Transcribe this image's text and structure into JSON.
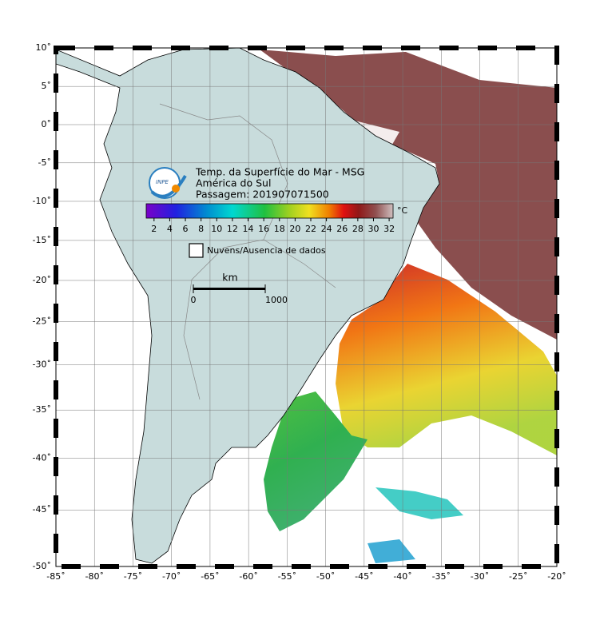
{
  "header": {
    "logo": "INPE",
    "title": "Temp. da Superfície do Mar - MSG",
    "region": "América do Sul",
    "pass": "Passagem: 201907071500"
  },
  "colorbar": {
    "range": [
      1,
      32.5
    ],
    "ticks": [
      2,
      4,
      6,
      8,
      10,
      12,
      14,
      16,
      18,
      20,
      22,
      24,
      26,
      28,
      30,
      32
    ],
    "unit": "°C"
  },
  "legend": {
    "label": "Nuvens/Ausencia de dados"
  },
  "scale_bar": {
    "unit": "km",
    "ticks": [
      0,
      1000
    ]
  },
  "map": {
    "lonlim": [
      -85,
      -20
    ],
    "latlim": [
      -50,
      10
    ],
    "lonticks": [
      {
        "value": -85,
        "label": "-85˚"
      },
      {
        "value": -80,
        "label": "-80˚"
      },
      {
        "value": -75,
        "label": "-75˚"
      },
      {
        "value": -70,
        "label": "-70˚"
      },
      {
        "value": -65,
        "label": "-65˚"
      },
      {
        "value": -60,
        "label": "-60˚"
      },
      {
        "value": -55,
        "label": "-55˚"
      },
      {
        "value": -50,
        "label": "-50˚"
      },
      {
        "value": -45,
        "label": "-45˚"
      },
      {
        "value": -40,
        "label": "-40˚"
      },
      {
        "value": -35,
        "label": "-35˚"
      },
      {
        "value": -30,
        "label": "-30˚"
      },
      {
        "value": -25,
        "label": "-25˚"
      },
      {
        "value": -20,
        "label": "-20˚"
      }
    ],
    "latticks": [
      {
        "value": 10,
        "label": "10˚"
      },
      {
        "value": 5,
        "label": "5˚"
      },
      {
        "value": 0,
        "label": "0˚"
      },
      {
        "value": -5,
        "label": "-5˚"
      },
      {
        "value": -10,
        "label": "-10˚"
      },
      {
        "value": -15,
        "label": "-15˚"
      },
      {
        "value": -20,
        "label": "-20˚"
      },
      {
        "value": -25,
        "label": "-25˚"
      },
      {
        "value": -30,
        "label": "-30˚"
      },
      {
        "value": -35,
        "label": "-35˚"
      },
      {
        "value": -40,
        "label": "-40˚"
      },
      {
        "value": -45,
        "label": "-45˚"
      },
      {
        "value": -50,
        "label": "-50˚"
      }
    ]
  }
}
